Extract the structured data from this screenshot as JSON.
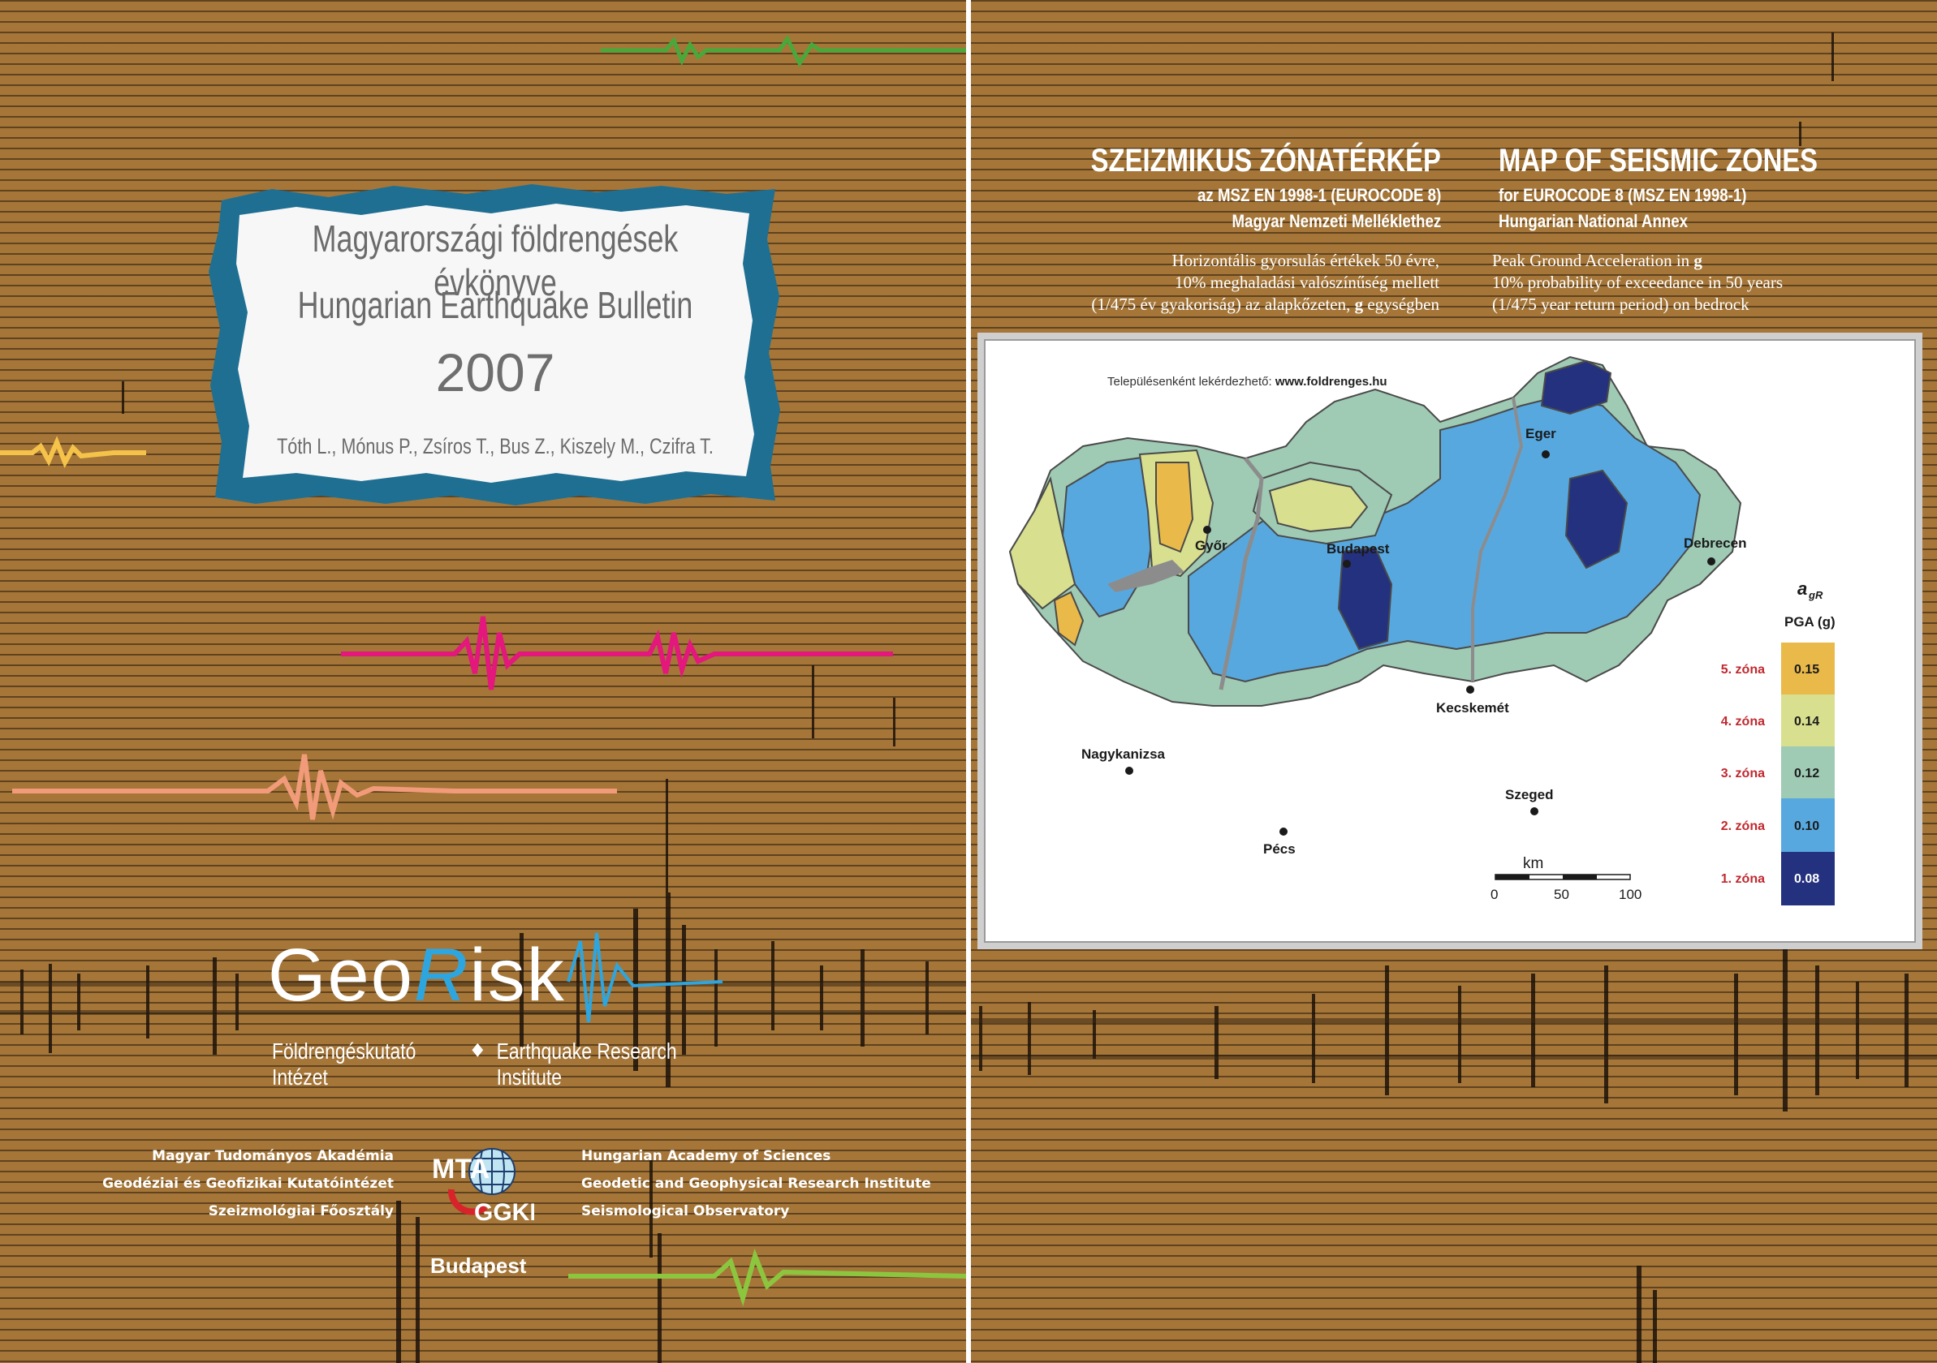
{
  "cover": {
    "title_hu": "Magyarországi földrengések évkönyve",
    "title_en": "Hungarian Earthquake Bulletin",
    "year": "2007",
    "authors": "Tóth L., Mónus P., Zsíros T., Bus Z., Kiszely M., Czifra T.",
    "logo_geo": "Geo",
    "logo_r": "R",
    "logo_isk": "isk",
    "institute_hu": "Földrengéskutató Intézet",
    "institute_en": "Earthquake Research Institute",
    "academy_hu": [
      "Magyar Tudományos Akadémia",
      "Geodéziai és Geofizikai Kutatóintézet",
      "Szeizmológiai Főosztály"
    ],
    "academy_en": [
      "Hungarian Academy of Sciences",
      "Geodetic and Geophysical Research Institute",
      "Seismological Observatory"
    ],
    "mta_top": "MTA",
    "mta_bottom": "GGKI",
    "city": "Budapest",
    "colors": {
      "background": "#a57638",
      "title_border": "#1f6f93",
      "georisk_r": "#2da6e0",
      "wave_magenta": "#e3177c",
      "wave_green": "#4aa83a",
      "wave_lime": "#8cc63f",
      "wave_salmon": "#f29b7a",
      "wave_yellow": "#f5c24a"
    }
  },
  "back": {
    "heading_hu": "SZEIZMIKUS ZÓNATÉRKÉP",
    "sub_hu_1": "az MSZ EN 1998-1 (EUROCODE 8)",
    "sub_hu_2": "Magyar Nemzeti Melléklethez",
    "desc_hu_1": "Horizontális gyorsulás értékek 50 évre,",
    "desc_hu_2": "10% meghaladási valószínűség mellett",
    "desc_hu_3": "(1/475 év gyakoriság) az alapkőzeten,",
    "desc_hu_3_bold": "g",
    "desc_hu_3_end": "egységben",
    "heading_en": "MAP OF SEISMIC ZONES",
    "sub_en_1": "for EUROCODE 8 (MSZ EN 1998-1)",
    "sub_en_2": "Hungarian National Annex",
    "desc_en_1": "Peak Ground Acceleration in",
    "desc_en_1_bold": "g",
    "desc_en_2": "10% probability of exceedance in 50 years",
    "desc_en_3": "(1/475 year return period) on bedrock"
  },
  "map": {
    "note_label": "Településenként lekérdezhető:",
    "note_url": "www.foldrenges.hu",
    "cities": [
      "Eger",
      "Győr",
      "Budapest",
      "Debrecen",
      "Kecskemét",
      "Nagykanizsa",
      "Szeged",
      "Pécs"
    ],
    "legend_title_a": "a",
    "legend_title_sub": "gR",
    "legend_unit": "PGA (g)",
    "zones": [
      {
        "label": "5. zóna",
        "value": "0.15",
        "color": "#e9b94a"
      },
      {
        "label": "4. zóna",
        "value": "0.14",
        "color": "#d8df8f"
      },
      {
        "label": "3. zóna",
        "value": "0.12",
        "color": "#9fcab4"
      },
      {
        "label": "2. zóna",
        "value": "0.10",
        "color": "#58a8e0"
      },
      {
        "label": "1. zóna",
        "value": "0.08",
        "color": "#24317e"
      }
    ],
    "scale_unit": "km",
    "scale_ticks": [
      "0",
      "50",
      "100"
    ]
  }
}
